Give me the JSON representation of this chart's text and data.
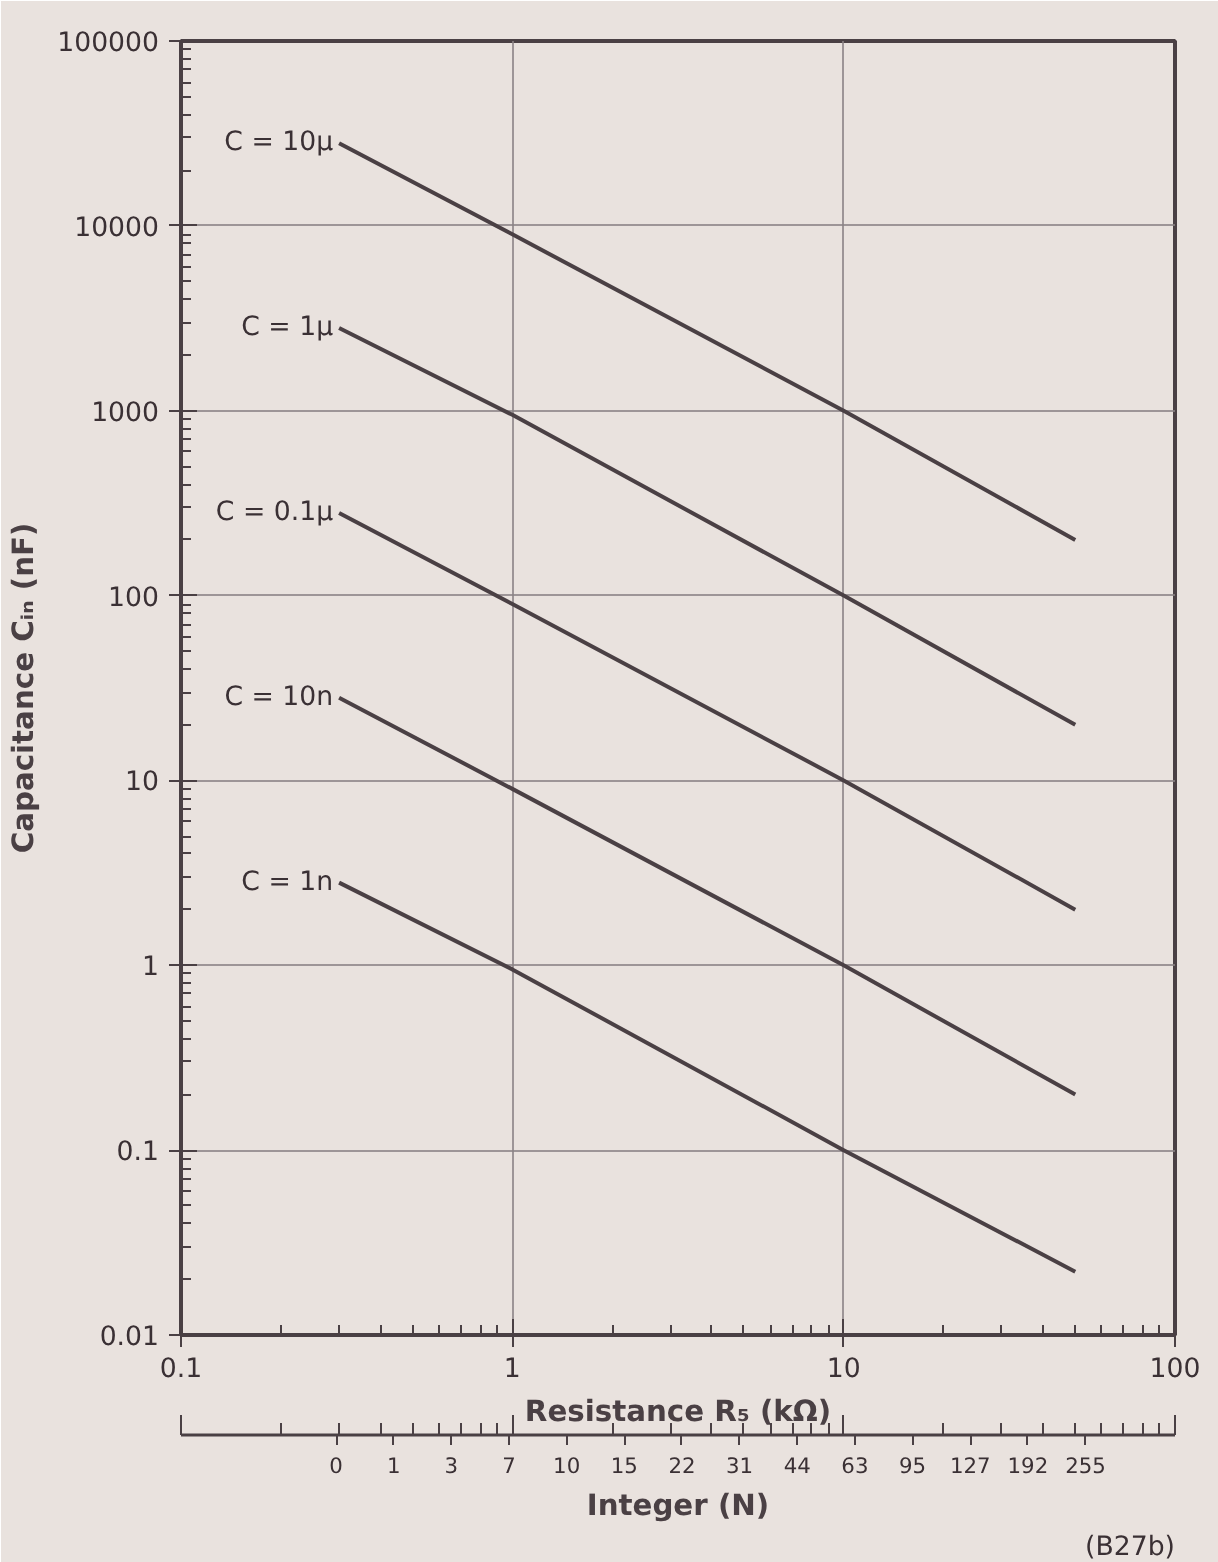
{
  "chart_data": {
    "type": "line",
    "xlabel": "Resistance R₅ (kΩ)",
    "ylabel": "Capacitance Cᵢₙ (nF)",
    "x2label": "Integer (N)",
    "log": "xy",
    "grid": true,
    "legend": false,
    "marker": "none",
    "line_style": "solid",
    "xlim": [
      0.1,
      100
    ],
    "xticks": [
      0.1,
      1,
      10,
      100
    ],
    "ylim": [
      0.01,
      100000
    ],
    "yticks": [
      0.01,
      0.1,
      1,
      10,
      100,
      1000,
      10000,
      100000
    ],
    "x": [
      0.3,
      1,
      10,
      50
    ],
    "series": [
      {
        "name": "C = 10µ",
        "color": "#4a4044",
        "values": [
          28000,
          9000,
          1000,
          200
        ]
      },
      {
        "name": "C = 1µ",
        "color": "#4a4044",
        "values": [
          2800,
          950,
          100,
          20
        ]
      },
      {
        "name": "C = 0.1µ",
        "color": "#4a4044",
        "values": [
          280,
          90,
          10,
          2
        ]
      },
      {
        "name": "C = 10n",
        "color": "#4a4044",
        "values": [
          28,
          9,
          1,
          0.2
        ]
      },
      {
        "name": "C = 1n",
        "color": "#4a4044",
        "values": [
          2.8,
          0.95,
          0.1,
          0.022
        ]
      }
    ],
    "annotations": [
      "(B27b)",
      "0",
      "1",
      "3",
      "7",
      "10",
      "15",
      "22",
      "31",
      "44",
      "63",
      "95",
      "127",
      "192",
      "255"
    ]
  }
}
